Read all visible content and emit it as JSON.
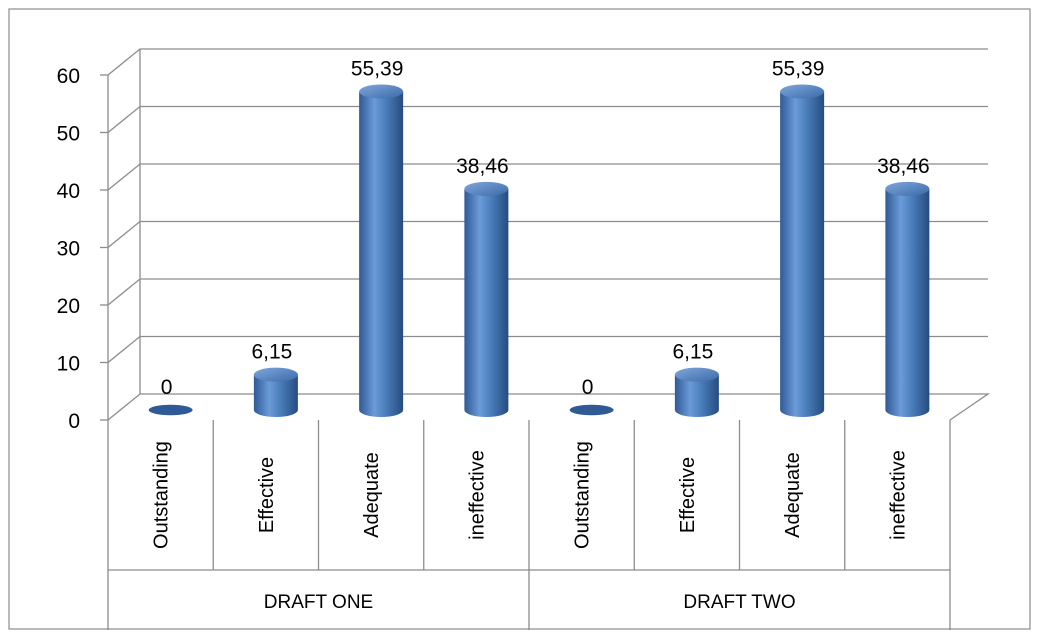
{
  "chart_data": {
    "type": "bar",
    "style": "3d-cylinder",
    "grid": true,
    "legend": "none",
    "ylim": [
      0,
      60
    ],
    "yticks": [
      "0",
      "10",
      "20",
      "30",
      "40",
      "50",
      "60"
    ],
    "groups": [
      {
        "label": "DRAFT ONE",
        "categories": [
          "Outstanding",
          "Effective",
          "Adequate",
          "ineffective"
        ],
        "values": [
          0,
          6.15,
          55.39,
          38.46
        ],
        "value_labels": [
          "0",
          "6,15",
          "55,39",
          "38,46"
        ]
      },
      {
        "label": "DRAFT TWO",
        "categories": [
          "Outstanding",
          "Effective",
          "Adequate",
          "ineffective"
        ],
        "values": [
          0,
          6.15,
          55.39,
          38.46
        ],
        "value_labels": [
          "0",
          "6,15",
          "55,39",
          "38,46"
        ]
      }
    ],
    "colors": {
      "bar": "#4a7ebb",
      "bar_dark": "#2b5288",
      "bar_light": "#8db3e2",
      "grid": "#8c8c8c"
    }
  }
}
